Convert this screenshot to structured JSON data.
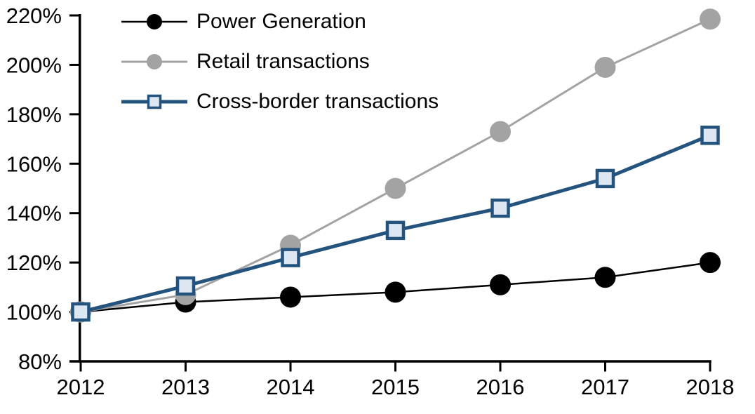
{
  "chart_data": {
    "type": "line",
    "categories": [
      "2012",
      "2013",
      "2014",
      "2015",
      "2016",
      "2017",
      "2018"
    ],
    "series": [
      {
        "name": "Power Generation",
        "values": [
          100,
          104,
          106,
          108,
          111,
          114,
          120
        ],
        "color": "#000000",
        "marker": "circle",
        "marker_fill": "#000000",
        "line_width": 2.5
      },
      {
        "name": "Retail transactions",
        "values": [
          100,
          107,
          127,
          150,
          173,
          199,
          218.5
        ],
        "color": "#a3a3a3",
        "marker": "circle",
        "marker_fill": "#a3a3a3",
        "line_width": 3
      },
      {
        "name": "Cross-border transactions",
        "values": [
          100,
          110.5,
          122,
          133,
          142,
          154,
          171.5
        ],
        "color": "#24547e",
        "marker": "square",
        "marker_fill": "#dce7f2",
        "line_width": 5
      }
    ],
    "ylim": [
      80,
      220
    ],
    "ytick_step": 20,
    "ytick_labels": [
      "80%",
      "100%",
      "120%",
      "140%",
      "160%",
      "180%",
      "200%",
      "220%"
    ],
    "grid": false,
    "legend_position": "top-left",
    "axis_color": "#000000",
    "text_color": "#000000"
  }
}
